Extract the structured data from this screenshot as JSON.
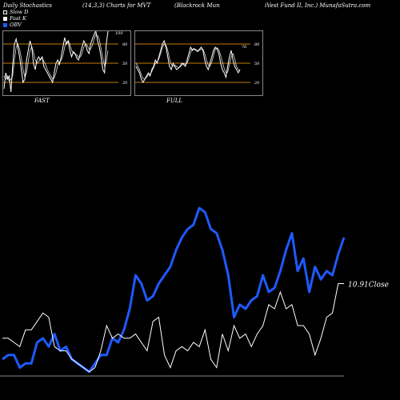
{
  "header": {
    "col1": "Daily Stochastics",
    "col2": "(14,3,3) Charts for MVT",
    "col3": "(Blackrock Mun",
    "col4": "iVest Fund II,  Inc.) MunafaSutra.com"
  },
  "legend": [
    {
      "label": "Slow D",
      "color": "#ffffff"
    },
    {
      "label": "Fast K",
      "color": "#ffffff"
    },
    {
      "label": "OBV",
      "color": "#1e5aff"
    }
  ],
  "panels": {
    "fast_label": "FAST",
    "full_label": "FULL",
    "fast_top_value": "100",
    "full_value": "76"
  },
  "colors": {
    "obv": "#1e5aff",
    "close": "#ffffff",
    "band": "#c87d0a",
    "axis": "#888888"
  },
  "chart_data": [
    {
      "type": "line",
      "name": "Fast Stochastics",
      "ylim": [
        0,
        100
      ],
      "yticks": [
        "20",
        "50",
        "80"
      ],
      "series": [
        {
          "name": "Fast K",
          "values": [
            10,
            35,
            25,
            30,
            5,
            45,
            80,
            88,
            75,
            60,
            40,
            20,
            25,
            55,
            70,
            85,
            75,
            50,
            40,
            55,
            60,
            55,
            60,
            45,
            40,
            35,
            30,
            25,
            20,
            35,
            50,
            55,
            48,
            60,
            75,
            90,
            80,
            85,
            70,
            60,
            68,
            65,
            58,
            55,
            65,
            75,
            85,
            80,
            70,
            65,
            80,
            88,
            95,
            100,
            85,
            75,
            60,
            40,
            35,
            80,
            100
          ]
        },
        {
          "name": "Slow D",
          "values": [
            30,
            25,
            30,
            22,
            25,
            30,
            55,
            75,
            80,
            72,
            58,
            40,
            28,
            35,
            52,
            70,
            76,
            68,
            55,
            50,
            52,
            57,
            58,
            53,
            48,
            40,
            35,
            30,
            25,
            27,
            35,
            47,
            52,
            55,
            62,
            75,
            82,
            85,
            80,
            70,
            66,
            64,
            63,
            59,
            60,
            65,
            75,
            80,
            78,
            72,
            72,
            78,
            88,
            95,
            93,
            87,
            73,
            58,
            45,
            52,
            70
          ]
        }
      ]
    },
    {
      "type": "line",
      "name": "Full Stochastics",
      "ylim": [
        0,
        100
      ],
      "yticks": [
        "20",
        "50",
        "80"
      ],
      "series": [
        {
          "name": "Fast K",
          "values": [
            45,
            40,
            35,
            25,
            20,
            25,
            30,
            35,
            30,
            40,
            45,
            55,
            50,
            60,
            70,
            80,
            85,
            75,
            60,
            45,
            40,
            50,
            45,
            40,
            42,
            45,
            50,
            48,
            45,
            55,
            65,
            75,
            70,
            72,
            70,
            68,
            72,
            75,
            70,
            55,
            45,
            40,
            50,
            60,
            70,
            75,
            72,
            65,
            50,
            40,
            35,
            28,
            45,
            60,
            70,
            55,
            45,
            40,
            35,
            40
          ]
        },
        {
          "name": "Slow D",
          "values": [
            50,
            45,
            40,
            32,
            26,
            25,
            28,
            32,
            33,
            37,
            43,
            50,
            52,
            57,
            65,
            75,
            80,
            78,
            70,
            57,
            48,
            45,
            47,
            45,
            43,
            44,
            47,
            50,
            48,
            50,
            58,
            67,
            72,
            73,
            71,
            70,
            70,
            72,
            72,
            65,
            55,
            47,
            45,
            52,
            62,
            72,
            74,
            71,
            62,
            52,
            42,
            35,
            36,
            48,
            60,
            65,
            57,
            45,
            40,
            38
          ]
        }
      ]
    },
    {
      "type": "line",
      "name": "Price and OBV",
      "annotation": "10.91Close",
      "series": [
        {
          "name": "OBV",
          "values": [
            20,
            25,
            25,
            10,
            15,
            15,
            40,
            45,
            35,
            50,
            30,
            35,
            20,
            15,
            10,
            5,
            15,
            25,
            25,
            45,
            40,
            55,
            80,
            120,
            110,
            90,
            95,
            110,
            120,
            130,
            150,
            165,
            175,
            180,
            200,
            195,
            175,
            170,
            150,
            120,
            70,
            85,
            80,
            90,
            95,
            120,
            100,
            105,
            125,
            150,
            170,
            125,
            140,
            100,
            130,
            115,
            125,
            120,
            145,
            165
          ]
        },
        {
          "name": "Close",
          "values": [
            45,
            45,
            40,
            35,
            55,
            55,
            65,
            75,
            70,
            35,
            30,
            30,
            20,
            15,
            10,
            5,
            10,
            30,
            60,
            45,
            50,
            45,
            45,
            50,
            40,
            30,
            65,
            70,
            25,
            10,
            30,
            35,
            30,
            40,
            35,
            55,
            20,
            10,
            50,
            30,
            60,
            45,
            50,
            35,
            50,
            60,
            85,
            80,
            100,
            80,
            85,
            60,
            60,
            50,
            25,
            45,
            70,
            75,
            110,
            110
          ]
        }
      ]
    }
  ]
}
